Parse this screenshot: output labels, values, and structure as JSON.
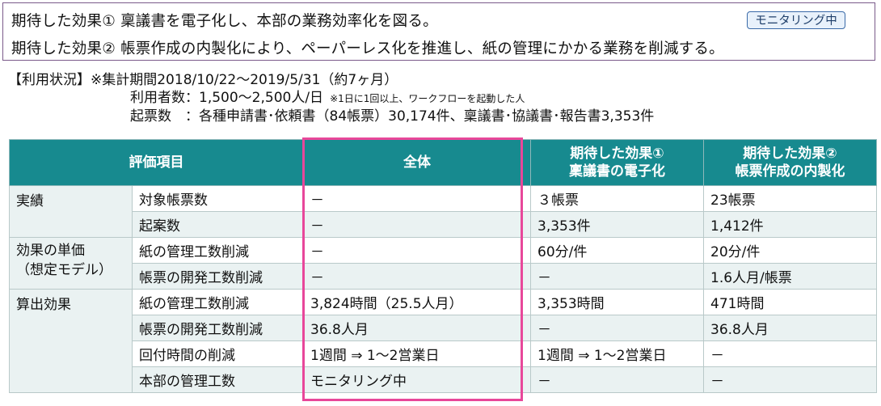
{
  "effects": {
    "effect1": "期待した効果① 稟議書を電子化し、本部の業務効率化を図る。",
    "effect2": "期待した効果② 帳票作成の内製化により、ペーパーレス化を推進し、紙の管理にかかる業務を削減する。",
    "badge": "モニタリング中"
  },
  "usage": {
    "line1": "【利用状況】※集計期間2018/10/22～2019/5/31（約7ヶ月）",
    "users": "利用者数：1,500～2,500人/日",
    "users_note": "※1日に1回以上、ワークフローを起動した人",
    "drafts": "起票数　：各種申請書･依頼書（84帳票）30,174件、稟議書･協議書･報告書3,353件"
  },
  "table": {
    "headers": {
      "item": "評価項目",
      "total": "全体",
      "effect1_l1": "期待した効果①",
      "effect1_l2": "稟議書の電子化",
      "effect2_l1": "期待した効果②",
      "effect2_l2": "帳票作成の内製化"
    },
    "categories": {
      "results": "実績",
      "unit_l1": "効果の単価",
      "unit_l2": "（想定モデル）",
      "calc": "算出効果"
    },
    "rows": [
      {
        "item": "対象帳票数",
        "total": "－",
        "e1": "３帳票",
        "e2": "23帳票"
      },
      {
        "item": "起案数",
        "total": "－",
        "e1": "3,353件",
        "e2": "1,412件"
      },
      {
        "item": "紙の管理工数削減",
        "total": "－",
        "e1": "60分/件",
        "e2": "20分/件"
      },
      {
        "item": "帳票の開発工数削減",
        "total": "－",
        "e1": "－",
        "e2": "1.6人月/帳票"
      },
      {
        "item": "紙の管理工数削減",
        "total": "3,824時間（25.5人月）",
        "e1": "3,353時間",
        "e2": "471時間"
      },
      {
        "item": "帳票の開発工数削減",
        "total": "36.8人月",
        "e1": "－",
        "e2": "36.8人月"
      },
      {
        "item": "回付時間の削減",
        "total": "1週間 ⇒ 1～2営業日",
        "e1": "1週間 ⇒ 1～2営業日",
        "e2": "－"
      },
      {
        "item": "本部の管理工数",
        "total": "モニタリング中",
        "e1": "－",
        "e2": "－"
      }
    ]
  },
  "colors": {
    "header_bg": "#178a8f",
    "highlight": "#e8479a",
    "stripe": "#eaf2f2"
  }
}
